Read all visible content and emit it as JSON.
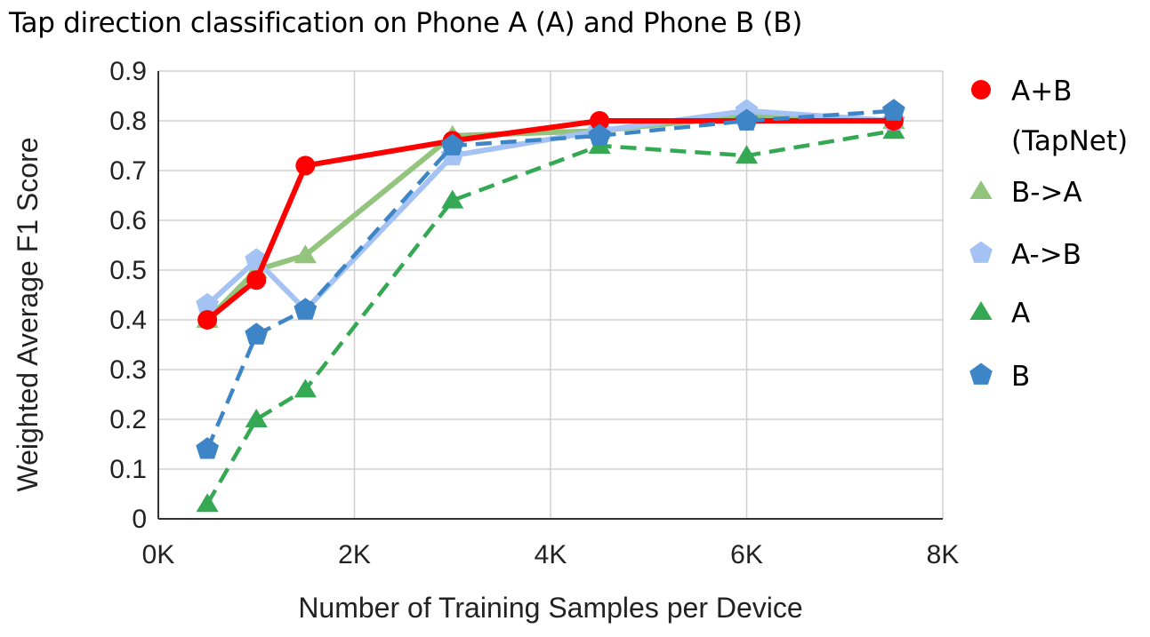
{
  "chart_data": {
    "type": "line",
    "title": "Tap direction classification on Phone A (A) and Phone B (B)",
    "xlabel": "Number of Training Samples per Device",
    "ylabel": "Weighted Average F1 Score",
    "xlim": [
      0,
      8000
    ],
    "ylim": [
      0,
      0.9
    ],
    "x_ticks": [
      0,
      2000,
      4000,
      6000,
      8000
    ],
    "x_tick_labels": [
      "0K",
      "2K",
      "4K",
      "6K",
      "8K"
    ],
    "y_ticks": [
      0,
      0.1,
      0.2,
      0.3,
      0.4,
      0.5,
      0.6,
      0.7,
      0.8,
      0.9
    ],
    "y_tick_labels": [
      "0",
      "0.1",
      "0.2",
      "0.3",
      "0.4",
      "0.5",
      "0.6",
      "0.7",
      "0.8",
      "0.9"
    ],
    "grid": true,
    "legend_position": "right",
    "x": [
      500,
      1000,
      1500,
      3000,
      4500,
      6000,
      7500
    ],
    "series": [
      {
        "name": "A+B (TapNet)",
        "legend_lines": [
          "A+B",
          "(TapNet)"
        ],
        "color": "#ff0000",
        "marker": "circle",
        "dashed": false,
        "values": [
          0.4,
          0.48,
          0.71,
          0.76,
          0.8,
          0.8,
          0.8
        ]
      },
      {
        "name": "B->A",
        "legend_lines": [
          "B->A"
        ],
        "color": "#93c47d",
        "marker": "triangle",
        "dashed": false,
        "values": [
          0.4,
          0.5,
          0.53,
          0.77,
          0.78,
          0.81,
          0.8
        ]
      },
      {
        "name": "A->B",
        "legend_lines": [
          "A->B"
        ],
        "color": "#a4c2f4",
        "marker": "pentagon",
        "dashed": false,
        "values": [
          0.43,
          0.52,
          0.42,
          0.73,
          0.78,
          0.82,
          0.8
        ]
      },
      {
        "name": "A",
        "legend_lines": [
          "A"
        ],
        "color": "#34a853",
        "marker": "triangle",
        "dashed": true,
        "values": [
          0.03,
          0.2,
          0.26,
          0.64,
          0.75,
          0.73,
          0.78
        ]
      },
      {
        "name": "B",
        "legend_lines": [
          "B"
        ],
        "color": "#3d85c6",
        "marker": "pentagon",
        "dashed": true,
        "values": [
          0.14,
          0.37,
          0.42,
          0.75,
          0.77,
          0.8,
          0.82
        ]
      }
    ]
  }
}
